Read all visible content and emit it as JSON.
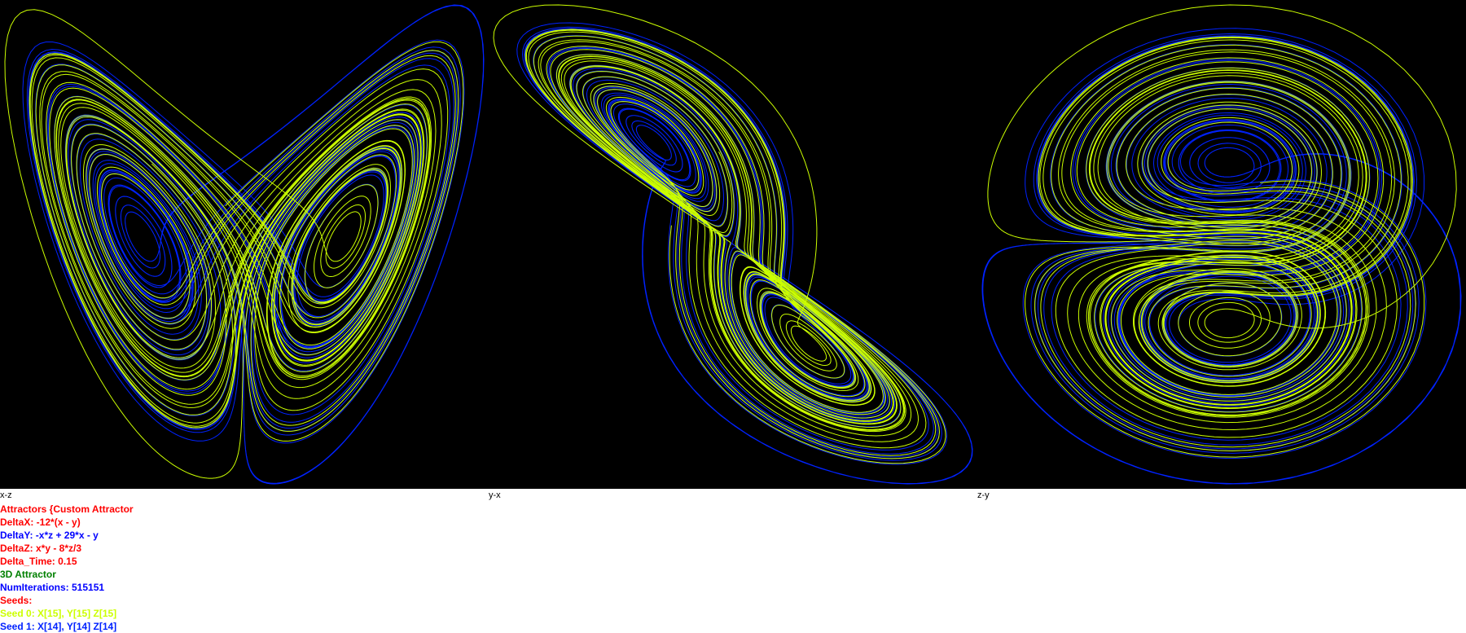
{
  "plots": [
    {
      "label": "x-z",
      "axes": [
        "x",
        "z"
      ]
    },
    {
      "label": "y-x",
      "axes": [
        "y",
        "x"
      ]
    },
    {
      "label": "z-y",
      "axes": [
        "z",
        "y"
      ]
    }
  ],
  "info": {
    "title": "Attractors {Custom Attractor",
    "delta_x": "DeltaX: -12*(x - y)",
    "delta_y": "DeltaY: -x*z + 29*x - y",
    "delta_z": "DeltaZ: x*y - 8*z/3",
    "delta_time": "Delta_Time: 0.15",
    "mode": "3D Attractor",
    "num_iterations": "NumIterations: 515151",
    "seeds_heading": "Seeds:",
    "seed0": "Seed 0: X[15], Y[15] Z[15]",
    "seed1": "Seed 1: X[14], Y[14] Z[14]"
  },
  "colors": {
    "background": "#000000",
    "seed0": "#ccff00",
    "seed1": "#0022ff",
    "title": "#ff0000",
    "delta_x": "#ff0000",
    "delta_y": "#0000ff",
    "delta_z": "#ff0000",
    "delta_time": "#ff0000",
    "mode": "#008000",
    "num_iterations": "#0000ff",
    "seeds_heading": "#ff0000",
    "seed0_text": "#ccff00",
    "seed1_text": "#0022ff"
  },
  "system": {
    "sigma": 12,
    "rho": 29,
    "beta_num": 8,
    "beta_den": 3
  }
}
